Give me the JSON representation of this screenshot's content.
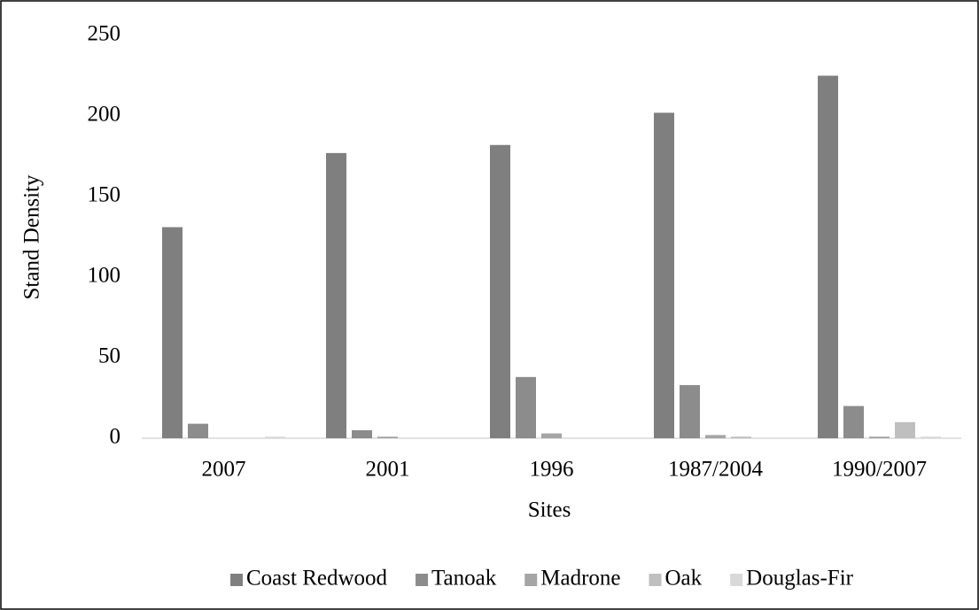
{
  "chart_data": {
    "type": "bar",
    "categories": [
      "2007",
      "2001",
      "1996",
      "1987/2004",
      "1990/2007"
    ],
    "series": [
      {
        "name": "Coast Redwood",
        "color": "#7f7f7f",
        "values": [
          131,
          177,
          182,
          202,
          225
        ]
      },
      {
        "name": "Tanoak",
        "color": "#8c8c8c",
        "values": [
          9,
          5,
          38,
          33,
          20
        ]
      },
      {
        "name": "Madrone",
        "color": "#a5a5a5",
        "values": [
          0,
          1,
          3,
          2,
          1
        ]
      },
      {
        "name": "Oak",
        "color": "#bfbfbf",
        "values": [
          0,
          0,
          0,
          1,
          10
        ]
      },
      {
        "name": "Douglas-Fir",
        "color": "#d9d9d9",
        "values": [
          1,
          0,
          0,
          0,
          1
        ]
      }
    ],
    "xlabel": "Sites",
    "ylabel": "Stand Density",
    "ylim": [
      0,
      250
    ],
    "yticks": [
      0,
      50,
      100,
      150,
      200,
      250
    ],
    "grid": false,
    "legend": "bottom"
  }
}
